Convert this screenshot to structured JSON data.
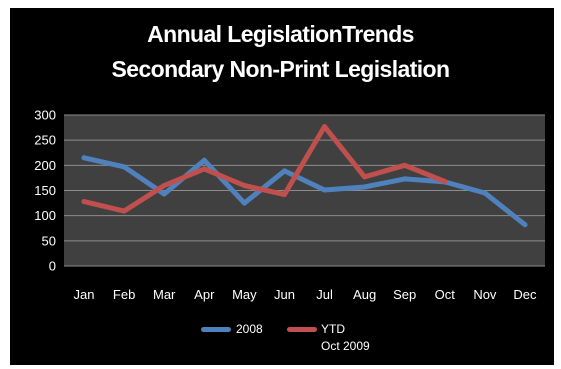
{
  "chart_data": {
    "type": "line",
    "title": "Annual LegislationTrends",
    "subtitle": "Secondary Non-Print Legislation",
    "categories": [
      "Jan",
      "Feb",
      "Mar",
      "Apr",
      "May",
      "Jun",
      "Jul",
      "Aug",
      "Sep",
      "Oct",
      "Nov",
      "Dec"
    ],
    "ylim": [
      0,
      300
    ],
    "yticks": [
      0,
      50,
      100,
      150,
      200,
      250,
      300
    ],
    "grid": true,
    "legend_position": "bottom",
    "background": "#000000",
    "plot_background": "#404040",
    "series": [
      {
        "name": "2008",
        "color": "#4F81BD",
        "values": [
          215,
          197,
          143,
          210,
          125,
          189,
          151,
          157,
          173,
          167,
          145,
          82
        ]
      },
      {
        "name": "YTD Oct 2009",
        "name_lines": [
          "YTD",
          "Oct 2009"
        ],
        "color": "#C0504D",
        "values": [
          128,
          109,
          160,
          193,
          160,
          142,
          277,
          177,
          200,
          168,
          null,
          null
        ]
      }
    ]
  }
}
